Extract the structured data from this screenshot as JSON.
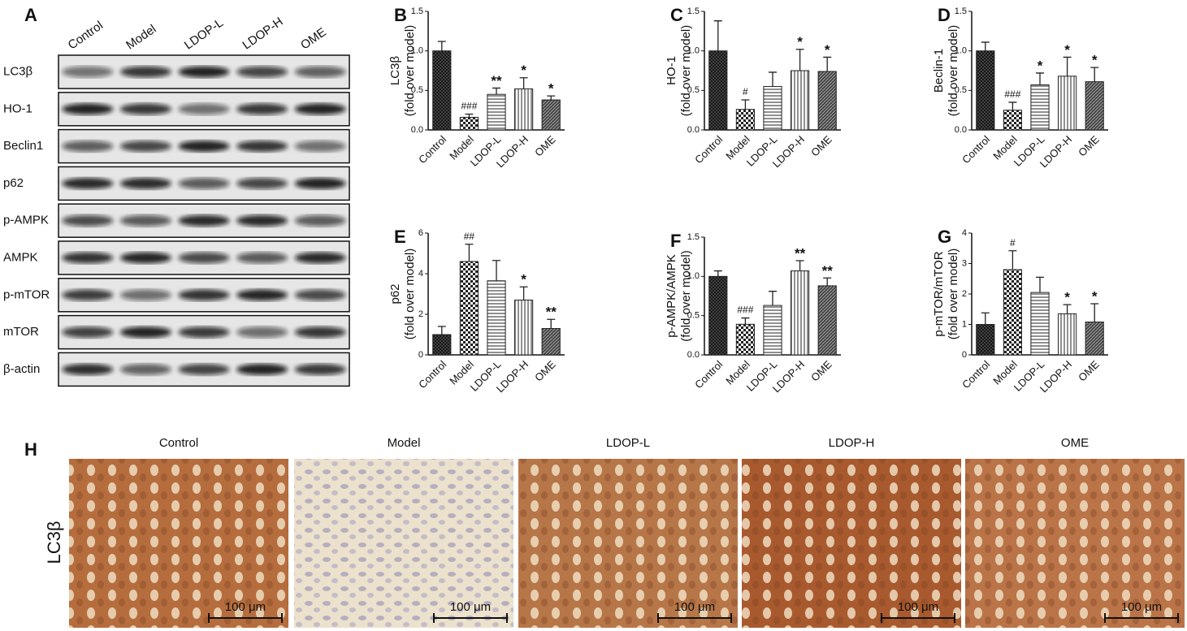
{
  "panel_labels": [
    "A",
    "B",
    "C",
    "D",
    "E",
    "F",
    "G",
    "H"
  ],
  "blot": {
    "lanes": [
      "Control",
      "Model",
      "LDOP-L",
      "LDOP-H",
      "OME"
    ],
    "proteins": [
      "LC3β",
      "HO-1",
      "Beclin1",
      "p62",
      "p-AMPK",
      "AMPK",
      "p-mTOR",
      "mTOR",
      "β-actin"
    ]
  },
  "chart_data": [
    {
      "type": "bar",
      "ylabel": "LC3β",
      "ylabel_note": "(fold over model)",
      "categories": [
        "Control",
        "Model",
        "LDOP-L",
        "LDOP-H",
        "OME"
      ],
      "values": [
        1.0,
        0.16,
        0.45,
        0.52,
        0.38
      ],
      "errors": [
        0.12,
        0.04,
        0.08,
        0.14,
        0.05
      ],
      "annotations": [
        null,
        "###",
        "**",
        "*",
        "*"
      ],
      "ylim": [
        0,
        1.5
      ],
      "yticks": [
        {
          "value": 0,
          "label": "0.0"
        },
        0.5,
        {
          "value": 1,
          "label": "1.0"
        },
        1.5
      ],
      "color": "#222"
    },
    {
      "type": "bar",
      "ylabel": "HO-1",
      "ylabel_note": "(fold over model)",
      "categories": [
        "Control",
        "Model",
        "LDOP-L",
        "LDOP-H",
        "OME"
      ],
      "values": [
        1.0,
        0.26,
        0.55,
        0.75,
        0.74
      ],
      "errors": [
        0.38,
        0.12,
        0.18,
        0.27,
        0.18
      ],
      "annotations": [
        null,
        "#",
        null,
        "*",
        "*"
      ],
      "ylim": [
        0,
        1.5
      ],
      "yticks": [
        {
          "value": 0,
          "label": "0.0"
        },
        0.5,
        {
          "value": 1,
          "label": "1.0"
        },
        1.5
      ],
      "color": "#222"
    },
    {
      "type": "bar",
      "ylabel": "Beclin-1",
      "ylabel_note": "(fold over model)",
      "categories": [
        "Control",
        "Model",
        "LDOP-L",
        "LDOP-H",
        "OME"
      ],
      "values": [
        1.0,
        0.25,
        0.57,
        0.68,
        0.61
      ],
      "errors": [
        0.11,
        0.1,
        0.15,
        0.24,
        0.18
      ],
      "annotations": [
        null,
        "###",
        "*",
        "*",
        "*"
      ],
      "ylim": [
        0,
        1.5
      ],
      "yticks": [
        {
          "value": 0,
          "label": "0.0"
        },
        0.5,
        {
          "value": 1,
          "label": "1.0"
        },
        1.5
      ],
      "color": "#222"
    },
    {
      "type": "bar",
      "ylabel": "p62",
      "ylabel_note": "(fold over model)",
      "categories": [
        "Control",
        "Model",
        "LDOP-L",
        "LDOP-H",
        "OME"
      ],
      "values": [
        1.0,
        4.6,
        3.65,
        2.7,
        1.3
      ],
      "errors": [
        0.4,
        0.85,
        1.0,
        0.65,
        0.45
      ],
      "annotations": [
        null,
        "##",
        null,
        "*",
        "**"
      ],
      "ylim": [
        0,
        6
      ],
      "yticks": [
        0,
        2,
        4,
        6
      ],
      "color": "#222"
    },
    {
      "type": "bar",
      "ylabel": "p-AMPK/AMPK",
      "ylabel_note": "(fold over model)",
      "categories": [
        "Control",
        "Model",
        "LDOP-L",
        "LDOP-H",
        "OME"
      ],
      "values": [
        1.0,
        0.39,
        0.63,
        1.07,
        0.88
      ],
      "errors": [
        0.07,
        0.08,
        0.18,
        0.13,
        0.1
      ],
      "annotations": [
        null,
        "###",
        null,
        "**",
        "**"
      ],
      "ylim": [
        0,
        1.5
      ],
      "yticks": [
        {
          "value": 0,
          "label": "0.0"
        },
        0.5,
        {
          "value": 1,
          "label": "1.0"
        },
        1.5
      ],
      "color": "#222"
    },
    {
      "type": "bar",
      "ylabel": "p-mTOR/mTOR",
      "ylabel_note": "(fold over model)",
      "categories": [
        "Control",
        "Model",
        "LDOP-L",
        "LDOP-H",
        "OME"
      ],
      "values": [
        1.0,
        2.8,
        2.05,
        1.35,
        1.08
      ],
      "errors": [
        0.38,
        0.62,
        0.5,
        0.3,
        0.6
      ],
      "annotations": [
        null,
        "#",
        null,
        "*",
        "*"
      ],
      "ylim": [
        0,
        4
      ],
      "yticks": [
        0,
        1,
        2,
        3,
        4
      ],
      "color": "#222"
    }
  ],
  "histology": {
    "groups": [
      "Control",
      "Model",
      "LDOP-L",
      "LDOP-H",
      "OME"
    ],
    "stain": "LC3β",
    "scale_bar": "100 μm"
  }
}
